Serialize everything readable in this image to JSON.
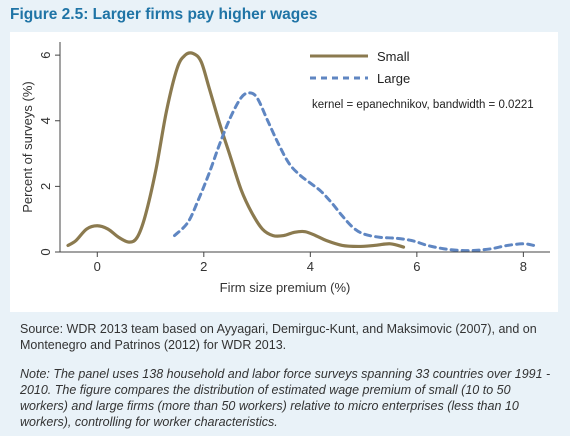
{
  "figure": {
    "title": "Figure 2.5: Larger firms pay higher wages"
  },
  "source": "Source: WDR 2013 team based on Ayyagari, Demirguc-Kunt, and Maksimovic (2007), and on Montenegro and Patrinos (2012) for WDR 2013.",
  "note": "Note: The panel uses 138 household and labor force surveys spanning 33 countries over 1991 - 2010. The figure compares the distribution of estimated wage premium of small (10 to 50 workers) and large firms (more than 50 workers) relative to micro enterprises (less than 10 workers), controlling for worker characteristics.",
  "colors": {
    "small": "#8b7a4f",
    "large": "#5f86c2",
    "title": "#1f74a6"
  },
  "chart_data": {
    "type": "line",
    "xlabel": "Firm size premium (%)",
    "ylabel": "Percent of surveys (%)",
    "xlim": [
      -0.7,
      8.5
    ],
    "ylim": [
      0,
      6.4
    ],
    "xticks": [
      0,
      2,
      4,
      6,
      8
    ],
    "yticks": [
      0,
      2,
      4,
      6
    ],
    "legend_position": "top-right",
    "annotation": "kernel = epanechnikov, bandwidth = 0.0221",
    "series": [
      {
        "name": "Small",
        "style": "solid",
        "x": [
          -0.55,
          -0.4,
          -0.2,
          0.0,
          0.2,
          0.4,
          0.6,
          0.75,
          0.9,
          1.1,
          1.3,
          1.5,
          1.65,
          1.8,
          1.95,
          2.1,
          2.3,
          2.5,
          2.7,
          2.9,
          3.1,
          3.3,
          3.5,
          3.7,
          3.9,
          4.1,
          4.3,
          4.6,
          4.9,
          5.2,
          5.5,
          5.75
        ],
        "y": [
          0.2,
          0.35,
          0.7,
          0.8,
          0.7,
          0.45,
          0.3,
          0.45,
          1.1,
          2.5,
          4.3,
          5.6,
          6.0,
          6.05,
          5.8,
          5.0,
          3.9,
          2.9,
          1.9,
          1.2,
          0.7,
          0.5,
          0.5,
          0.6,
          0.62,
          0.5,
          0.35,
          0.2,
          0.17,
          0.2,
          0.25,
          0.15
        ]
      },
      {
        "name": "Large",
        "style": "dashed",
        "x": [
          1.45,
          1.7,
          1.9,
          2.1,
          2.3,
          2.5,
          2.7,
          2.85,
          3.0,
          3.2,
          3.4,
          3.6,
          3.8,
          4.0,
          4.2,
          4.4,
          4.6,
          4.8,
          5.0,
          5.3,
          5.6,
          5.9,
          6.2,
          6.5,
          6.8,
          7.1,
          7.4,
          7.7,
          8.0,
          8.2
        ],
        "y": [
          0.5,
          0.9,
          1.6,
          2.4,
          3.3,
          4.1,
          4.7,
          4.85,
          4.7,
          4.0,
          3.3,
          2.7,
          2.35,
          2.1,
          1.85,
          1.5,
          1.1,
          0.75,
          0.55,
          0.45,
          0.42,
          0.35,
          0.2,
          0.1,
          0.05,
          0.05,
          0.1,
          0.2,
          0.25,
          0.2
        ]
      }
    ]
  }
}
